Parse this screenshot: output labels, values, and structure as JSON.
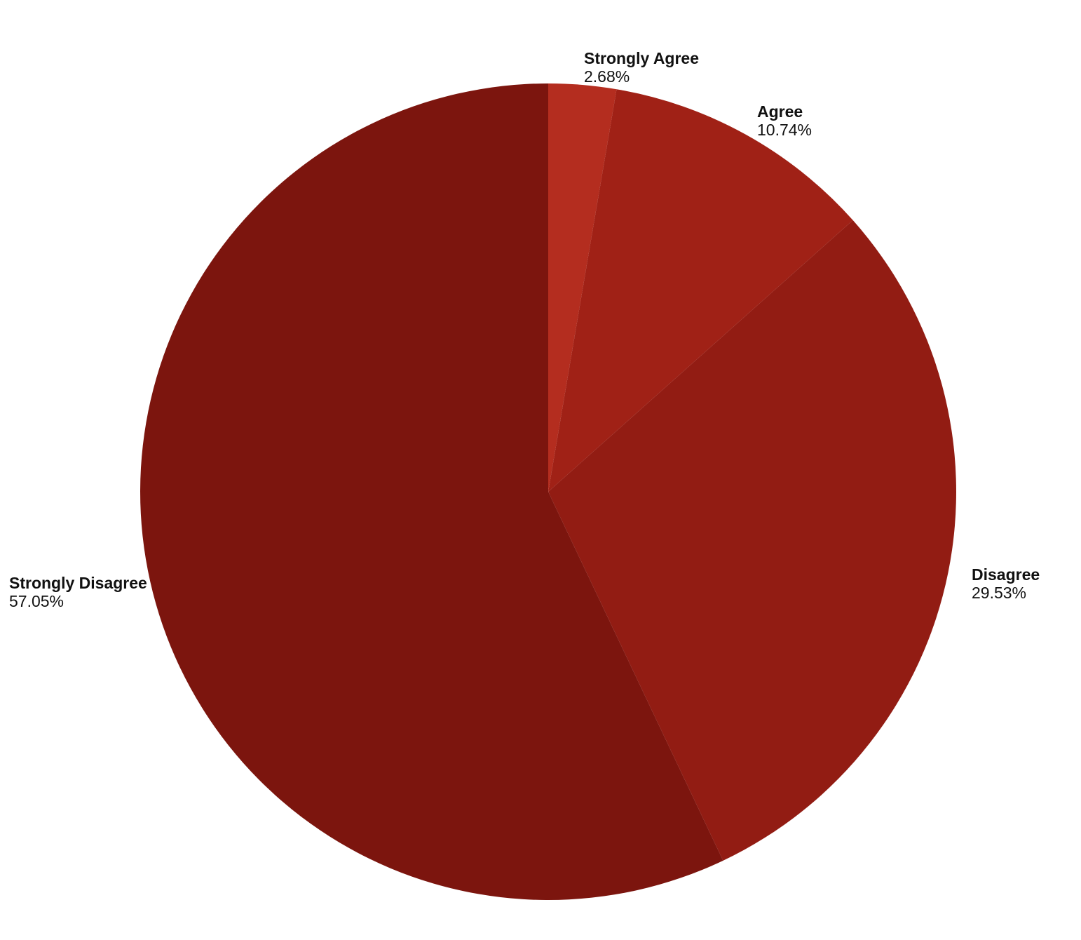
{
  "figure": {
    "background_color": "#ffffff",
    "label_text_color": "#111111"
  },
  "chart_data": {
    "type": "pie",
    "title": "",
    "labels": [
      "Strongly Agree",
      "Agree",
      "Disagree",
      "Strongly Disagree"
    ],
    "values": [
      2.68,
      10.74,
      29.53,
      57.05
    ],
    "percent_labels": [
      "2.68%",
      "10.74%",
      "29.53%",
      "57.05%"
    ],
    "slice_colors": [
      "#b42d1f",
      "#a02116",
      "#921c13",
      "#7c150e"
    ],
    "start_angle": "12-oclock",
    "direction": "clockwise",
    "label_position": "outside",
    "legend": "none"
  }
}
